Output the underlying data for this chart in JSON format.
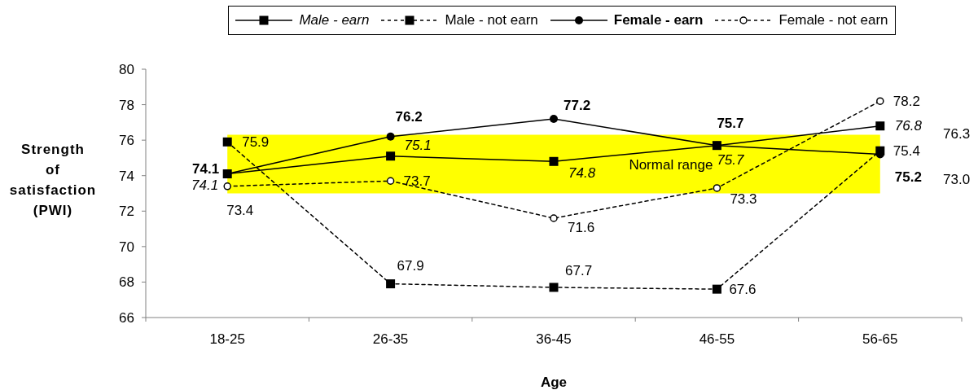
{
  "chart_data": {
    "type": "line",
    "categories": [
      "18-25",
      "26-35",
      "36-45",
      "46-55",
      "56-65"
    ],
    "series": [
      {
        "name": "Male - earn",
        "color": "#000000",
        "values": [
          74.1,
          75.1,
          74.8,
          75.7,
          76.8
        ],
        "marker": "square",
        "line_style": "solid"
      },
      {
        "name": "Male - not earn",
        "color": "#000000",
        "values": [
          75.9,
          67.9,
          67.7,
          67.6,
          75.4
        ],
        "marker": "square",
        "line_style": "dashed"
      },
      {
        "name": "Female - earn",
        "color": "#000000",
        "values": [
          74.1,
          76.2,
          77.2,
          75.7,
          75.2
        ],
        "marker": "circle",
        "line_style": "solid"
      },
      {
        "name": "Female - not earn",
        "color": "#000000",
        "values": [
          73.4,
          73.7,
          71.6,
          73.3,
          78.2
        ],
        "marker": "circle",
        "line_style": "dashed"
      }
    ],
    "xlabel": "Age",
    "ylabel": "Strength of satisfaction (PWI)",
    "ylim": [
      66,
      80
    ],
    "yticks": [
      66,
      68,
      70,
      72,
      74,
      76,
      78,
      80
    ],
    "bands": [
      {
        "axis": "y",
        "from": 73.0,
        "to": 76.3,
        "label": "Normal range",
        "color": "#ffff00"
      }
    ],
    "annotations": [
      "76.3",
      "73.0"
    ],
    "data_labels": true,
    "legend": "top"
  }
}
